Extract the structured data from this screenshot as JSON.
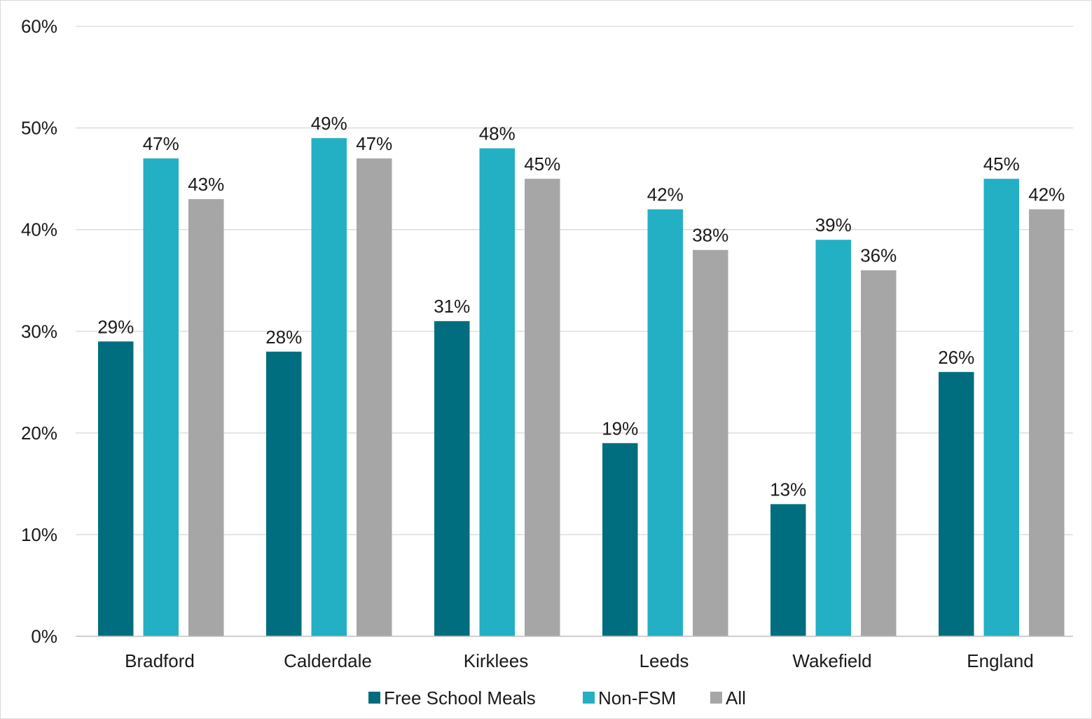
{
  "chart_data": {
    "type": "bar",
    "categories": [
      "Bradford",
      "Calderdale",
      "Kirklees",
      "Leeds",
      "Wakefield",
      "England"
    ],
    "series": [
      {
        "name": "Free School Meals",
        "color": "#006e7f",
        "values": [
          29,
          28,
          31,
          19,
          13,
          26
        ],
        "labels": [
          "29%",
          "28%",
          "31%",
          "19%",
          "13%",
          "26%"
        ]
      },
      {
        "name": "Non-FSM",
        "color": "#23b0c4",
        "values": [
          47,
          49,
          48,
          42,
          39,
          45
        ],
        "labels": [
          "47%",
          "49%",
          "48%",
          "42%",
          "39%",
          "45%"
        ]
      },
      {
        "name": "All",
        "color": "#a6a6a6",
        "values": [
          43,
          47,
          45,
          38,
          36,
          42
        ],
        "labels": [
          "43%",
          "47%",
          "45%",
          "38%",
          "36%",
          "42%"
        ]
      }
    ],
    "ylim": [
      0,
      60
    ],
    "yticks": [
      0,
      10,
      20,
      30,
      40,
      50,
      60
    ],
    "ytick_labels": [
      "0%",
      "10%",
      "20%",
      "30%",
      "40%",
      "50%",
      "60%"
    ],
    "grid": true,
    "legend_position": "bottom"
  }
}
